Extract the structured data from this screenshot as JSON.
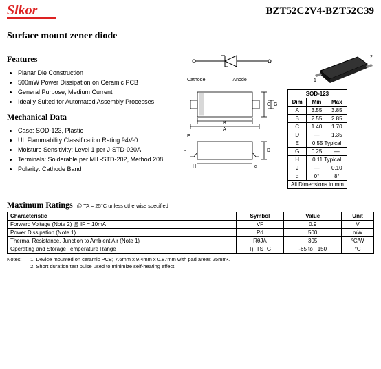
{
  "header": {
    "logo": "Slkor",
    "partno": "BZT52C2V4-BZT52C39"
  },
  "title": "Surface mount zener diode",
  "features": {
    "heading": "Features",
    "items": [
      "Planar Die Construction",
      "500mW Power Dissipation on Ceramic PCB",
      "General Purpose, Medium Current",
      "Ideally Suited for Automated Assembly Processes"
    ]
  },
  "mech": {
    "heading": "Mechanical Data",
    "items": [
      "Case: SOD-123, Plastic",
      "UL Flammability Classification Rating 94V-0",
      "Moisture Sensitivity: Level 1 per J-STD-020A",
      "Terminals: Solderable per MIL-STD-202, Method 208",
      "Polarity: Cathode Band"
    ]
  },
  "symbol": {
    "cathode": "Cathode",
    "anode": "Anode"
  },
  "pkg3d": {
    "pin1": "1",
    "pin2": "2"
  },
  "dims": {
    "title": "SOD-123",
    "head": {
      "dim": "Dim",
      "min": "Min",
      "max": "Max"
    },
    "rows": [
      {
        "d": "A",
        "min": "3.55",
        "max": "3.85"
      },
      {
        "d": "B",
        "min": "2.55",
        "max": "2.85"
      },
      {
        "d": "C",
        "min": "1.40",
        "max": "1.70"
      },
      {
        "d": "D",
        "min": "—",
        "max": "1.35"
      },
      {
        "d": "E",
        "span": "0.55 Typical"
      },
      {
        "d": "G",
        "min": "0.25",
        "max": "—"
      },
      {
        "d": "H",
        "span": "0.11 Typical"
      },
      {
        "d": "J",
        "min": "—",
        "max": "0.10"
      },
      {
        "d": "α",
        "min": "0°",
        "max": "8°"
      }
    ],
    "footer": "All Dimensions in mm"
  },
  "outline": {
    "A": "A",
    "B": "B",
    "C": "C",
    "D": "D",
    "E": "E",
    "G": "G",
    "H": "H",
    "J": "J",
    "a": "α"
  },
  "maxratings": {
    "heading": "Maximum Ratings",
    "cond": "@ TA = 25°C unless otherwise specified",
    "head": {
      "char": "Characteristic",
      "sym": "Symbol",
      "val": "Value",
      "unit": "Unit"
    },
    "rows": [
      {
        "c": "Forward Voltage (Note 2)              @ IF = 10mA",
        "s": "VF",
        "v": "0.9",
        "u": "V"
      },
      {
        "c": "Power Dissipation (Note 1)",
        "s": "Pd",
        "v": "500",
        "u": "mW"
      },
      {
        "c": "Thermal Resistance, Junction to Ambient Air (Note 1)",
        "s": "RθJA",
        "v": "305",
        "u": "°C/W"
      },
      {
        "c": "Operating and Storage Temperature Range",
        "s": "Tj, TSTG",
        "v": "-65 to +150",
        "u": "°C"
      }
    ]
  },
  "notes": {
    "label": "Notes:",
    "n1": "1. Device mounted on ceramic PCB; 7.6mm x 9.4mm x 0.87mm with pad areas 25mm².",
    "n2": "2. Short duration test pulse used to minimize self-heating effect."
  }
}
